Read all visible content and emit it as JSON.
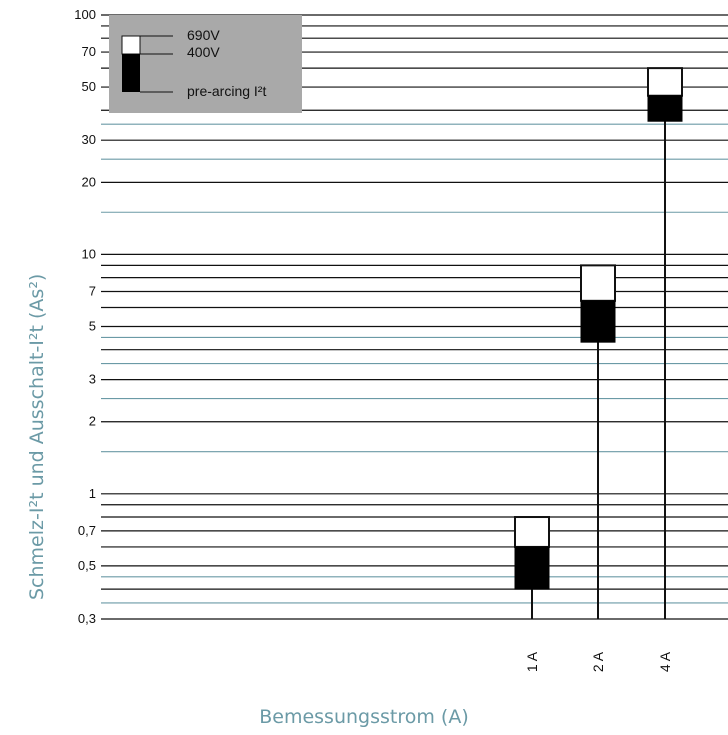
{
  "chart_data": {
    "type": "bar",
    "title": "",
    "ylabel": "Schmelz-I²t und Ausschalt-I²t (As²)",
    "xlabel": "Bemessungsstrom (A)",
    "yscale": "log",
    "ylim": [
      0.3,
      100
    ],
    "ytick_labels": [
      {
        "value": 100,
        "label": "100"
      },
      {
        "value": 70,
        "label": "70"
      },
      {
        "value": 50,
        "label": "50"
      },
      {
        "value": 30,
        "label": "30"
      },
      {
        "value": 20,
        "label": "20"
      },
      {
        "value": 10,
        "label": "10"
      },
      {
        "value": 7,
        "label": "7"
      },
      {
        "value": 5,
        "label": "5"
      },
      {
        "value": 3,
        "label": "3"
      },
      {
        "value": 2,
        "label": "2"
      },
      {
        "value": 1,
        "label": "1"
      },
      {
        "value": 0.7,
        "label": "0,7"
      },
      {
        "value": 0.5,
        "label": "0,5"
      },
      {
        "value": 0.3,
        "label": "0,3"
      }
    ],
    "gridlines_black": [
      100,
      90,
      80,
      70,
      60,
      50,
      40,
      30,
      20,
      10,
      9,
      8,
      7,
      6,
      5,
      4,
      3,
      2,
      1,
      0.9,
      0.8,
      0.7,
      0.6,
      0.5,
      0.4,
      0.3
    ],
    "gridlines_teal": [
      35,
      25,
      15,
      4.5,
      3.5,
      2.5,
      1.5,
      0.45,
      0.35
    ],
    "categories": [
      "1 A",
      "2 A",
      "4 A"
    ],
    "series": [
      {
        "name": "pre-arcing I²t",
        "values": [
          0.4,
          4.3,
          36
        ]
      },
      {
        "name": "400V",
        "values": [
          0.6,
          6.4,
          46
        ]
      },
      {
        "name": "690V",
        "values": [
          0.8,
          9.0,
          60
        ]
      }
    ],
    "legend": {
      "position": "top-left",
      "labels": [
        "690V",
        "400V",
        "pre-arcing I²t"
      ]
    },
    "colors": {
      "grid_black": "#111111",
      "grid_teal": "#6b9aa6",
      "legend_bg": "#a9a9a9",
      "axis_title": "#6b9aa6"
    }
  }
}
